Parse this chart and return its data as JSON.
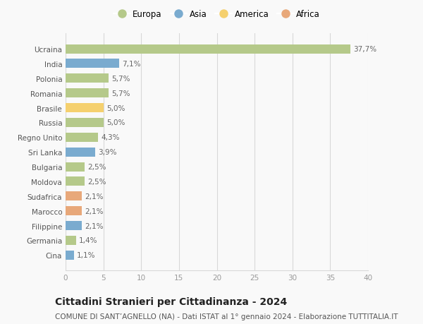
{
  "countries": [
    "Ucraina",
    "India",
    "Polonia",
    "Romania",
    "Brasile",
    "Russia",
    "Regno Unito",
    "Sri Lanka",
    "Bulgaria",
    "Moldova",
    "Sudafrica",
    "Marocco",
    "Filippine",
    "Germania",
    "Cina"
  ],
  "values": [
    37.7,
    7.1,
    5.7,
    5.7,
    5.0,
    5.0,
    4.3,
    3.9,
    2.5,
    2.5,
    2.1,
    2.1,
    2.1,
    1.4,
    1.1
  ],
  "labels": [
    "37,7%",
    "7,1%",
    "5,7%",
    "5,7%",
    "5,0%",
    "5,0%",
    "4,3%",
    "3,9%",
    "2,5%",
    "2,5%",
    "2,1%",
    "2,1%",
    "2,1%",
    "1,4%",
    "1,1%"
  ],
  "colors": [
    "#b5c98a",
    "#7aabcf",
    "#b5c98a",
    "#b5c98a",
    "#f5d06e",
    "#b5c98a",
    "#b5c98a",
    "#7aabcf",
    "#b5c98a",
    "#b5c98a",
    "#e8a87a",
    "#e8a87a",
    "#7aabcf",
    "#b5c98a",
    "#7aabcf"
  ],
  "legend_labels": [
    "Europa",
    "Asia",
    "America",
    "Africa"
  ],
  "legend_colors": [
    "#b5c98a",
    "#7aabcf",
    "#f5d06e",
    "#e8a87a"
  ],
  "xlim": [
    0,
    40
  ],
  "xticks": [
    0,
    5,
    10,
    15,
    20,
    25,
    30,
    35,
    40
  ],
  "title": "Cittadini Stranieri per Cittadinanza - 2024",
  "subtitle": "COMUNE DI SANT’AGNELLO (NA) - Dati ISTAT al 1° gennaio 2024 - Elaborazione TUTTITALIA.IT",
  "bg_color": "#f9f9f9",
  "grid_color": "#d8d8d8",
  "bar_height": 0.62,
  "label_fontsize": 7.5,
  "tick_fontsize": 7.5,
  "title_fontsize": 10,
  "subtitle_fontsize": 7.5,
  "legend_fontsize": 8.5
}
